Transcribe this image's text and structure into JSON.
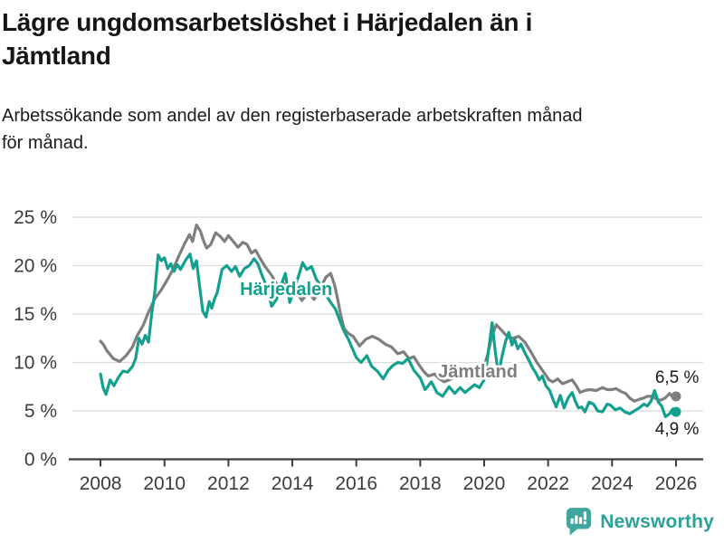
{
  "header": {
    "title_lines": [
      "Lägre ungdomsarbetslöshet i Härjedalen än i",
      "Jämtland"
    ],
    "subtitle_lines": [
      "Arbetssökande som andel av den registerbaserade arbetskraften månad",
      "för månad."
    ]
  },
  "footer": {
    "brand": "Newsworthy",
    "brand_color": "#2ba199",
    "icon_color": "#41a69e"
  },
  "chart_data": {
    "type": "line",
    "title": "Lägre ungdomsarbetslöshet i Härjedalen än i Jämtland",
    "subtitle": "Arbetssökande som andel av den registerbaserade arbetskraften månad för månad.",
    "xlim": [
      2007.12,
      2026.85
    ],
    "ylim": [
      0,
      25
    ],
    "grid": "horizontal",
    "legend_position": "inline-labels",
    "colors": {
      "grid": "#dcdcdc",
      "axis": "#3c3c3c",
      "text": "#3c3c3c",
      "value_text": "#1a1a1a"
    },
    "yticks": [
      {
        "value": 0,
        "label": "0 %"
      },
      {
        "value": 5,
        "label": "5 %"
      },
      {
        "value": 10,
        "label": "10 %"
      },
      {
        "value": 15,
        "label": "15 %"
      },
      {
        "value": 20,
        "label": "20 %"
      },
      {
        "value": 25,
        "label": "25 %"
      }
    ],
    "xticks": [
      {
        "value": 2008,
        "label": "2008"
      },
      {
        "value": 2010,
        "label": "2010"
      },
      {
        "value": 2012,
        "label": "2012"
      },
      {
        "value": 2014,
        "label": "2014"
      },
      {
        "value": 2016,
        "label": "2016"
      },
      {
        "value": 2018,
        "label": "2018"
      },
      {
        "value": 2020,
        "label": "2020"
      },
      {
        "value": 2022,
        "label": "2022"
      },
      {
        "value": 2024,
        "label": "2024"
      },
      {
        "value": 2026,
        "label": "2026"
      }
    ],
    "series": [
      {
        "name": "Jämtland",
        "color": "#7f7f7f",
        "end_value_label": "6,5 %",
        "points": [
          [
            2008.0,
            12.2
          ],
          [
            2008.1,
            11.8
          ],
          [
            2008.2,
            11.2
          ],
          [
            2008.4,
            10.4
          ],
          [
            2008.6,
            10.1
          ],
          [
            2008.8,
            10.7
          ],
          [
            2009.0,
            11.6
          ],
          [
            2009.15,
            12.8
          ],
          [
            2009.33,
            13.8
          ],
          [
            2009.5,
            15.2
          ],
          [
            2009.7,
            16.6
          ],
          [
            2009.9,
            17.5
          ],
          [
            2010.1,
            18.6
          ],
          [
            2010.28,
            19.7
          ],
          [
            2010.45,
            21.0
          ],
          [
            2010.62,
            22.2
          ],
          [
            2010.78,
            23.2
          ],
          [
            2010.88,
            22.5
          ],
          [
            2011.0,
            24.2
          ],
          [
            2011.12,
            23.6
          ],
          [
            2011.23,
            22.5
          ],
          [
            2011.32,
            21.8
          ],
          [
            2011.45,
            22.2
          ],
          [
            2011.6,
            23.4
          ],
          [
            2011.75,
            23.0
          ],
          [
            2011.88,
            22.5
          ],
          [
            2012.0,
            23.1
          ],
          [
            2012.15,
            22.5
          ],
          [
            2012.3,
            21.9
          ],
          [
            2012.45,
            22.4
          ],
          [
            2012.58,
            22.2
          ],
          [
            2012.72,
            21.3
          ],
          [
            2012.85,
            21.6
          ],
          [
            2013.0,
            20.7
          ],
          [
            2013.15,
            19.9
          ],
          [
            2013.35,
            19.0
          ],
          [
            2013.55,
            17.9
          ],
          [
            2013.7,
            18.3
          ],
          [
            2013.9,
            17.0
          ],
          [
            2014.1,
            17.4
          ],
          [
            2014.3,
            16.4
          ],
          [
            2014.5,
            17.2
          ],
          [
            2014.68,
            16.5
          ],
          [
            2014.85,
            17.5
          ],
          [
            2015.05,
            18.8
          ],
          [
            2015.2,
            19.2
          ],
          [
            2015.32,
            18.0
          ],
          [
            2015.42,
            16.5
          ],
          [
            2015.52,
            14.8
          ],
          [
            2015.62,
            13.5
          ],
          [
            2015.75,
            13.0
          ],
          [
            2015.9,
            12.7
          ],
          [
            2016.1,
            11.7
          ],
          [
            2016.3,
            12.4
          ],
          [
            2016.5,
            12.7
          ],
          [
            2016.7,
            12.4
          ],
          [
            2016.9,
            11.9
          ],
          [
            2017.1,
            11.6
          ],
          [
            2017.3,
            10.9
          ],
          [
            2017.48,
            11.1
          ],
          [
            2017.65,
            10.4
          ],
          [
            2017.8,
            10.6
          ],
          [
            2017.95,
            9.8
          ],
          [
            2018.1,
            9.1
          ],
          [
            2018.25,
            8.6
          ],
          [
            2018.45,
            8.8
          ],
          [
            2018.6,
            8.3
          ],
          [
            2018.75,
            8.0
          ],
          [
            2018.9,
            8.2
          ],
          [
            2019.05,
            8.4
          ],
          [
            2019.2,
            9.0
          ],
          [
            2019.4,
            8.6
          ],
          [
            2019.55,
            8.9
          ],
          [
            2019.7,
            9.0
          ],
          [
            2019.85,
            9.2
          ],
          [
            2020.0,
            9.6
          ],
          [
            2020.1,
            10.7
          ],
          [
            2020.25,
            12.8
          ],
          [
            2020.38,
            13.9
          ],
          [
            2020.52,
            13.4
          ],
          [
            2020.66,
            12.9
          ],
          [
            2020.78,
            12.6
          ],
          [
            2020.9,
            12.5
          ],
          [
            2021.08,
            12.7
          ],
          [
            2021.27,
            12.1
          ],
          [
            2021.46,
            11.1
          ],
          [
            2021.65,
            10.0
          ],
          [
            2021.84,
            9.1
          ],
          [
            2022.03,
            8.2
          ],
          [
            2022.15,
            8.0
          ],
          [
            2022.3,
            8.3
          ],
          [
            2022.45,
            7.8
          ],
          [
            2022.6,
            8.0
          ],
          [
            2022.75,
            8.2
          ],
          [
            2022.88,
            7.6
          ],
          [
            2023.0,
            6.9
          ],
          [
            2023.15,
            7.1
          ],
          [
            2023.3,
            7.2
          ],
          [
            2023.5,
            7.1
          ],
          [
            2023.7,
            7.4
          ],
          [
            2023.85,
            7.2
          ],
          [
            2024.0,
            7.2
          ],
          [
            2024.12,
            7.3
          ],
          [
            2024.28,
            7.0
          ],
          [
            2024.42,
            6.8
          ],
          [
            2024.56,
            6.3
          ],
          [
            2024.7,
            6.0
          ],
          [
            2024.85,
            6.2
          ],
          [
            2024.97,
            6.3
          ],
          [
            2025.1,
            6.5
          ],
          [
            2025.25,
            6.5
          ],
          [
            2025.4,
            6.2
          ],
          [
            2025.52,
            6.1
          ],
          [
            2025.65,
            6.3
          ],
          [
            2025.8,
            6.8
          ],
          [
            2025.9,
            6.4
          ],
          [
            2026.0,
            6.5
          ]
        ]
      },
      {
        "name": "Härjedalen",
        "color": "#13a08e",
        "end_value_label": "4,9 %",
        "points": [
          [
            2008.0,
            8.8
          ],
          [
            2008.08,
            7.4
          ],
          [
            2008.17,
            6.7
          ],
          [
            2008.3,
            8.2
          ],
          [
            2008.42,
            7.6
          ],
          [
            2008.55,
            8.4
          ],
          [
            2008.7,
            9.1
          ],
          [
            2008.85,
            9.0
          ],
          [
            2009.0,
            9.6
          ],
          [
            2009.1,
            10.4
          ],
          [
            2009.2,
            12.5
          ],
          [
            2009.3,
            11.9
          ],
          [
            2009.4,
            12.8
          ],
          [
            2009.5,
            12.1
          ],
          [
            2009.6,
            15.0
          ],
          [
            2009.7,
            17.3
          ],
          [
            2009.8,
            21.1
          ],
          [
            2009.9,
            20.5
          ],
          [
            2010.0,
            20.8
          ],
          [
            2010.1,
            19.7
          ],
          [
            2010.2,
            20.2
          ],
          [
            2010.3,
            19.4
          ],
          [
            2010.4,
            20.1
          ],
          [
            2010.5,
            19.6
          ],
          [
            2010.65,
            20.5
          ],
          [
            2010.8,
            21.2
          ],
          [
            2010.9,
            19.7
          ],
          [
            2011.0,
            20.5
          ],
          [
            2011.1,
            17.8
          ],
          [
            2011.2,
            15.3
          ],
          [
            2011.3,
            14.7
          ],
          [
            2011.4,
            16.3
          ],
          [
            2011.48,
            15.6
          ],
          [
            2011.57,
            16.6
          ],
          [
            2011.65,
            17.2
          ],
          [
            2011.8,
            19.6
          ],
          [
            2011.95,
            20.0
          ],
          [
            2012.1,
            19.4
          ],
          [
            2012.22,
            19.9
          ],
          [
            2012.35,
            18.9
          ],
          [
            2012.5,
            19.7
          ],
          [
            2012.65,
            20.0
          ],
          [
            2012.8,
            20.7
          ],
          [
            2012.92,
            20.2
          ],
          [
            2013.05,
            19.0
          ],
          [
            2013.2,
            17.8
          ],
          [
            2013.35,
            15.8
          ],
          [
            2013.5,
            16.5
          ],
          [
            2013.65,
            18.0
          ],
          [
            2013.78,
            19.2
          ],
          [
            2013.92,
            16.2
          ],
          [
            2014.05,
            17.5
          ],
          [
            2014.2,
            19.0
          ],
          [
            2014.32,
            20.3
          ],
          [
            2014.45,
            19.6
          ],
          [
            2014.6,
            19.9
          ],
          [
            2014.75,
            18.6
          ],
          [
            2014.9,
            17.9
          ],
          [
            2015.05,
            17.0
          ],
          [
            2015.2,
            16.2
          ],
          [
            2015.35,
            15.5
          ],
          [
            2015.5,
            14.2
          ],
          [
            2015.62,
            13.2
          ],
          [
            2015.75,
            12.4
          ],
          [
            2015.88,
            11.4
          ],
          [
            2016.0,
            10.5
          ],
          [
            2016.15,
            10.0
          ],
          [
            2016.33,
            10.7
          ],
          [
            2016.48,
            9.6
          ],
          [
            2016.66,
            9.1
          ],
          [
            2016.84,
            8.3
          ],
          [
            2017.0,
            9.2
          ],
          [
            2017.15,
            9.7
          ],
          [
            2017.3,
            10.0
          ],
          [
            2017.45,
            9.9
          ],
          [
            2017.62,
            10.4
          ],
          [
            2017.8,
            9.2
          ],
          [
            2018.0,
            8.4
          ],
          [
            2018.15,
            7.2
          ],
          [
            2018.35,
            8.0
          ],
          [
            2018.52,
            6.9
          ],
          [
            2018.7,
            6.5
          ],
          [
            2018.9,
            7.5
          ],
          [
            2019.08,
            6.8
          ],
          [
            2019.25,
            7.4
          ],
          [
            2019.4,
            6.9
          ],
          [
            2019.55,
            7.3
          ],
          [
            2019.7,
            7.7
          ],
          [
            2019.85,
            7.4
          ],
          [
            2020.0,
            8.2
          ],
          [
            2020.1,
            10.3
          ],
          [
            2020.25,
            14.1
          ],
          [
            2020.35,
            11.0
          ],
          [
            2020.45,
            8.7
          ],
          [
            2020.55,
            10.5
          ],
          [
            2020.67,
            12.2
          ],
          [
            2020.77,
            13.1
          ],
          [
            2020.87,
            11.8
          ],
          [
            2020.95,
            12.4
          ],
          [
            2021.05,
            11.4
          ],
          [
            2021.15,
            11.9
          ],
          [
            2021.27,
            11.0
          ],
          [
            2021.4,
            10.2
          ],
          [
            2021.52,
            9.4
          ],
          [
            2021.62,
            8.9
          ],
          [
            2021.72,
            8.2
          ],
          [
            2021.82,
            8.6
          ],
          [
            2021.93,
            7.6
          ],
          [
            2022.05,
            7.1
          ],
          [
            2022.15,
            6.2
          ],
          [
            2022.25,
            5.4
          ],
          [
            2022.38,
            6.6
          ],
          [
            2022.5,
            5.3
          ],
          [
            2022.62,
            6.3
          ],
          [
            2022.75,
            6.9
          ],
          [
            2022.85,
            6.0
          ],
          [
            2022.95,
            5.3
          ],
          [
            2023.05,
            5.4
          ],
          [
            2023.15,
            4.9
          ],
          [
            2023.28,
            5.9
          ],
          [
            2023.42,
            5.7
          ],
          [
            2023.55,
            5.0
          ],
          [
            2023.7,
            4.9
          ],
          [
            2023.85,
            5.7
          ],
          [
            2023.95,
            5.6
          ],
          [
            2024.1,
            5.1
          ],
          [
            2024.25,
            5.3
          ],
          [
            2024.4,
            4.9
          ],
          [
            2024.55,
            4.7
          ],
          [
            2024.7,
            5.0
          ],
          [
            2024.85,
            5.3
          ],
          [
            2025.0,
            5.7
          ],
          [
            2025.1,
            5.5
          ],
          [
            2025.22,
            6.0
          ],
          [
            2025.33,
            7.1
          ],
          [
            2025.45,
            5.9
          ],
          [
            2025.55,
            5.5
          ],
          [
            2025.67,
            4.4
          ],
          [
            2025.8,
            4.7
          ],
          [
            2025.9,
            5.2
          ],
          [
            2026.0,
            4.9
          ]
        ]
      }
    ],
    "annotations": [
      {
        "text": "Härjedalen",
        "x": 2012.36,
        "y": 16.96,
        "color": "#13a08e",
        "anchor": "start",
        "bold": true,
        "halo": true,
        "size": 20
      },
      {
        "text": "Jämtland",
        "x": 2018.56,
        "y": 8.46,
        "color": "#7f7f7f",
        "anchor": "start",
        "bold": true,
        "halo": true,
        "size": 20
      },
      {
        "text": "6,5 %",
        "x": 2026.72,
        "y": 7.9,
        "color": "#1a1a1a",
        "anchor": "end",
        "bold": false,
        "halo": false,
        "size": 19
      },
      {
        "text": "4,9 %",
        "x": 2026.72,
        "y": 2.55,
        "color": "#1a1a1a",
        "anchor": "end",
        "bold": false,
        "halo": false,
        "size": 19
      }
    ]
  }
}
